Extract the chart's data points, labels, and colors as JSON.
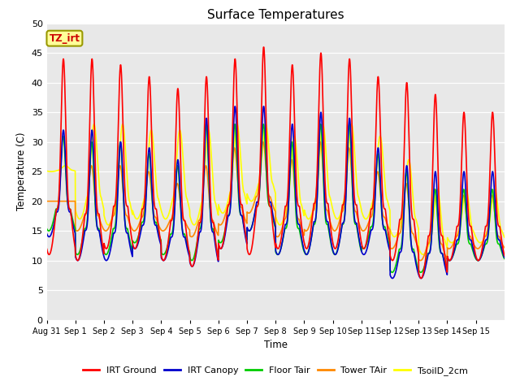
{
  "title": "Surface Temperatures",
  "xlabel": "Time",
  "ylabel": "Temperature (C)",
  "ylim": [
    0,
    50
  ],
  "yticks": [
    0,
    5,
    10,
    15,
    20,
    25,
    30,
    35,
    40,
    45,
    50
  ],
  "x_tick_labels": [
    "Aug 31",
    "Sep 1",
    "Sep 2",
    "Sep 3",
    "Sep 4",
    "Sep 5",
    "Sep 6",
    "Sep 7",
    "Sep 8",
    "Sep 9",
    "Sep 10",
    "Sep 11",
    "Sep 12",
    "Sep 13",
    "Sep 14",
    "Sep 15"
  ],
  "annotation_text": "TZ_irt",
  "annotation_color": "#cc0000",
  "annotation_bg": "#ffff99",
  "legend_entries": [
    "IRT Ground",
    "IRT Canopy",
    "Floor Tair",
    "Tower TAir",
    "TsoilD_2cm"
  ],
  "line_colors": [
    "#ff0000",
    "#0000cc",
    "#00cc00",
    "#ff8800",
    "#ffff00"
  ],
  "line_widths": [
    1.2,
    1.2,
    1.2,
    1.2,
    1.2
  ],
  "bg_color": "#e8e8e8",
  "n_days": 16,
  "pts_per_day": 144,
  "irt_ground_peaks": [
    44,
    44,
    43,
    41,
    39,
    41,
    44,
    46,
    43,
    45,
    44,
    41,
    40,
    38,
    35,
    35
  ],
  "irt_ground_mins": [
    11,
    10,
    12,
    12,
    10,
    9,
    12,
    11,
    12,
    12,
    12,
    12,
    10,
    7,
    10,
    10
  ],
  "irt_canopy_peaks": [
    32,
    32,
    30,
    29,
    27,
    34,
    36,
    36,
    33,
    35,
    34,
    29,
    26,
    25,
    25,
    25
  ],
  "irt_canopy_mins": [
    14,
    10,
    10,
    12,
    10,
    9,
    12,
    15,
    11,
    11,
    11,
    11,
    7,
    7,
    10,
    10
  ],
  "floor_peaks": [
    31,
    30,
    30,
    28,
    26,
    33,
    33,
    33,
    30,
    33,
    33,
    28,
    25,
    22,
    22,
    22
  ],
  "floor_mins": [
    15,
    11,
    11,
    13,
    11,
    10,
    13,
    15,
    11,
    11,
    11,
    12,
    8,
    8,
    10,
    10
  ],
  "tower_peaks": [
    20,
    26,
    26,
    25,
    23,
    26,
    29,
    30,
    27,
    30,
    29,
    25,
    23,
    22,
    21,
    21
  ],
  "tower_mins": [
    20,
    15,
    15,
    15,
    15,
    14,
    16,
    18,
    14,
    15,
    15,
    15,
    12,
    10,
    12,
    12
  ],
  "soil_peaks": [
    26,
    33,
    33,
    32,
    32,
    32,
    33,
    33,
    31,
    33,
    33,
    31,
    27,
    22,
    22,
    22
  ],
  "soil_mins": [
    25,
    17,
    16,
    17,
    17,
    16,
    18,
    20,
    16,
    17,
    17,
    17,
    14,
    11,
    13,
    13
  ]
}
